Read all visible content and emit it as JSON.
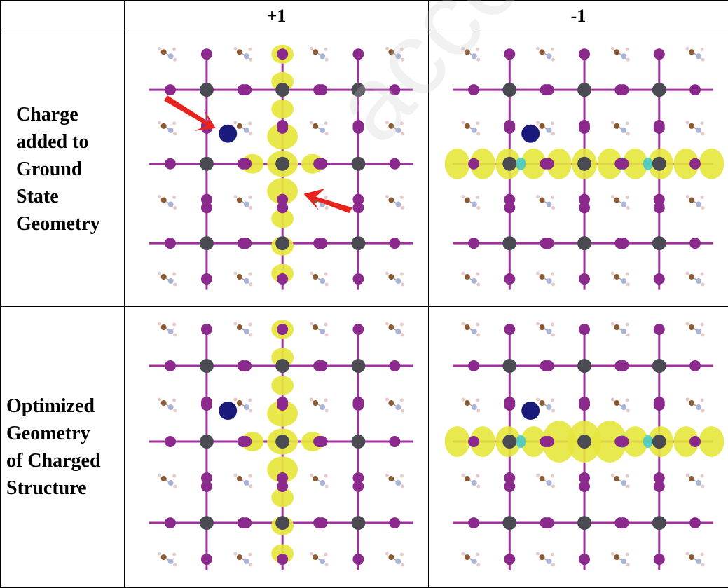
{
  "table": {
    "columns": [
      "",
      "+1",
      "-1"
    ],
    "rows": [
      {
        "label_lines": [
          "Charge",
          "added to",
          "Ground",
          "State",
          "Geometry"
        ],
        "panels": [
          {
            "column": "+1",
            "orbital_orientation": "vertical",
            "red_arrows": true
          },
          {
            "column": "-1",
            "orbital_orientation": "horizontal",
            "red_arrows": false
          }
        ]
      },
      {
        "label_lines": [
          "Optimized",
          "Geometry",
          "of Charged",
          "Structure"
        ],
        "panels": [
          {
            "column": "+1",
            "orbital_orientation": "vertical",
            "red_arrows": false
          },
          {
            "column": "-1",
            "orbital_orientation": "horizontal",
            "red_arrows": false
          }
        ]
      }
    ]
  },
  "colors": {
    "iodide": "#8b2a8c",
    "lead": "#4a4a52",
    "bond": "#a0319e",
    "density_yellow": "#e6e63c",
    "density_cyan": "#3cc8cc",
    "dopant": "#1a1a7a",
    "arrow": "#e8221c",
    "carbon": "#8a5a32",
    "nitrogen": "#a9b4d6",
    "hydrogen": "#e8c8c8"
  },
  "watermark": "accepted manuscript"
}
